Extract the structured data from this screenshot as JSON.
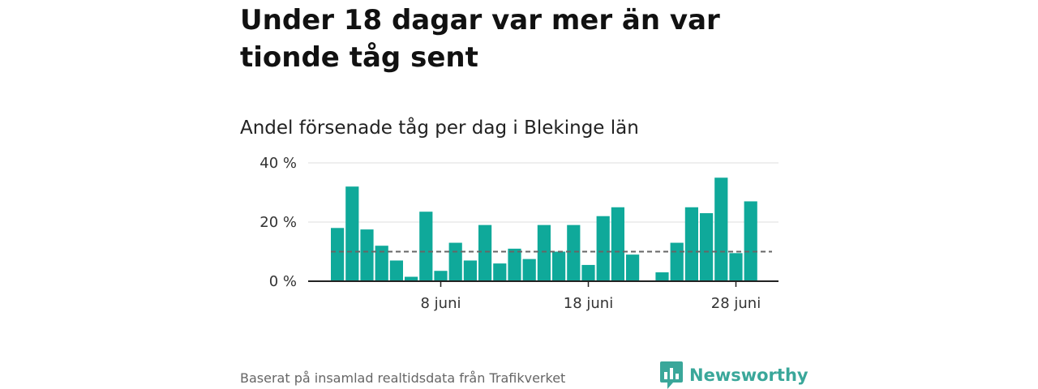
{
  "title": "Under 18 dagar var mer än var tionde tåg sent",
  "subtitle": "Andel försenade tåg per dag i Blekinge län",
  "source": "Baserat på insamlad realtidsdata från Trafikverket",
  "logo": {
    "name": "Newsworthy",
    "icon": "newsworthy-logo-icon"
  },
  "colors": {
    "bar": "#0fa99a",
    "reference_line": "#666666",
    "grid": "#dddddd",
    "axis": "#222222",
    "logo": "#3aa79a"
  },
  "chart_data": {
    "type": "bar",
    "x_type": "date",
    "x": [
      "2019-06-01",
      "2019-06-02",
      "2019-06-03",
      "2019-06-04",
      "2019-06-05",
      "2019-06-06",
      "2019-06-07",
      "2019-06-08",
      "2019-06-09",
      "2019-06-10",
      "2019-06-11",
      "2019-06-12",
      "2019-06-13",
      "2019-06-14",
      "2019-06-15",
      "2019-06-16",
      "2019-06-17",
      "2019-06-18",
      "2019-06-19",
      "2019-06-20",
      "2019-06-21",
      "2019-06-22",
      "2019-06-23",
      "2019-06-24",
      "2019-06-25",
      "2019-06-26",
      "2019-06-27",
      "2019-06-28",
      "2019-06-29",
      "2019-06-30"
    ],
    "values": [
      18,
      32,
      17.5,
      12,
      7,
      1.5,
      23.5,
      3.5,
      13,
      7,
      19,
      6,
      11,
      7.5,
      19,
      10,
      19,
      5.5,
      22,
      25,
      9,
      null,
      3,
      13,
      25,
      23,
      35,
      9.5,
      27,
      null
    ],
    "value_format": "percent",
    "reference_line": 10,
    "ylim": [
      0,
      40
    ],
    "yticks": [
      0,
      20,
      40
    ],
    "ytick_labels": [
      "0 %",
      "20 %",
      "40 %"
    ],
    "xticks": [
      "2019-06-08",
      "2019-06-18",
      "2019-06-28"
    ],
    "xtick_labels": [
      "8 juni",
      "18 juni",
      "28 juni"
    ],
    "grid": true
  }
}
